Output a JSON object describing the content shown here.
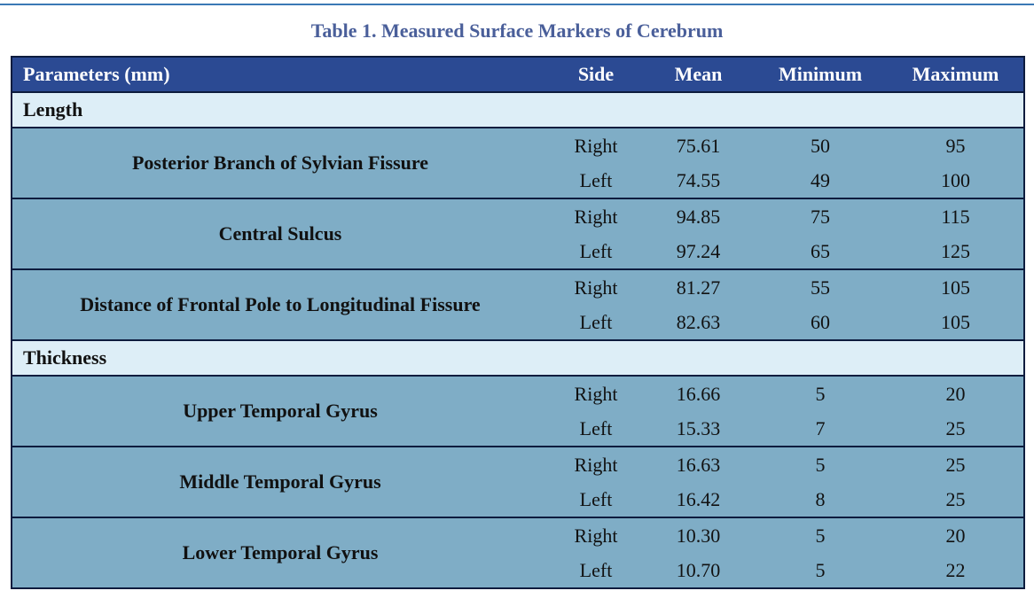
{
  "caption": "Table 1. Measured Surface Markers of Cerebrum",
  "headers": {
    "param": "Parameters (mm)",
    "side": "Side",
    "mean": "Mean",
    "minimum": "Minimum",
    "maximum": "Maximum"
  },
  "sections": [
    {
      "title": "Length",
      "groups": [
        {
          "name": "Posterior Branch of Sylvian Fissure",
          "rows": [
            {
              "side": "Right",
              "mean": "75.61",
              "min": "50",
              "max": "95"
            },
            {
              "side": "Left",
              "mean": "74.55",
              "min": "49",
              "max": "100"
            }
          ]
        },
        {
          "name": "Central Sulcus",
          "rows": [
            {
              "side": "Right",
              "mean": "94.85",
              "min": "75",
              "max": "115"
            },
            {
              "side": "Left",
              "mean": "97.24",
              "min": "65",
              "max": "125"
            }
          ]
        },
        {
          "name": "Distance of Frontal Pole to Longitudinal Fissure",
          "rows": [
            {
              "side": "Right",
              "mean": "81.27",
              "min": "55",
              "max": "105"
            },
            {
              "side": "Left",
              "mean": "82.63",
              "min": "60",
              "max": "105"
            }
          ]
        }
      ]
    },
    {
      "title": "Thickness",
      "groups": [
        {
          "name": "Upper Temporal Gyrus",
          "rows": [
            {
              "side": "Right",
              "mean": "16.66",
              "min": "5",
              "max": "20"
            },
            {
              "side": "Left",
              "mean": "15.33",
              "min": "7",
              "max": "25"
            }
          ]
        },
        {
          "name": "Middle Temporal Gyrus",
          "rows": [
            {
              "side": "Right",
              "mean": "16.63",
              "min": "5",
              "max": "25"
            },
            {
              "side": "Left",
              "mean": "16.42",
              "min": "8",
              "max": "25"
            }
          ]
        },
        {
          "name": "Lower Temporal Gyrus",
          "rows": [
            {
              "side": "Right",
              "mean": "10.30",
              "min": "5",
              "max": "20"
            },
            {
              "side": "Left",
              "mean": "10.70",
              "min": "5",
              "max": "22"
            }
          ]
        }
      ]
    }
  ],
  "colors": {
    "caption": "#4a5f9a",
    "header_bg": "#2b4a93",
    "section_bg": "#ddeef7",
    "row_bg": "#7fadc6",
    "border": "#0d1c3e",
    "top_rule": "#3b79b5"
  }
}
